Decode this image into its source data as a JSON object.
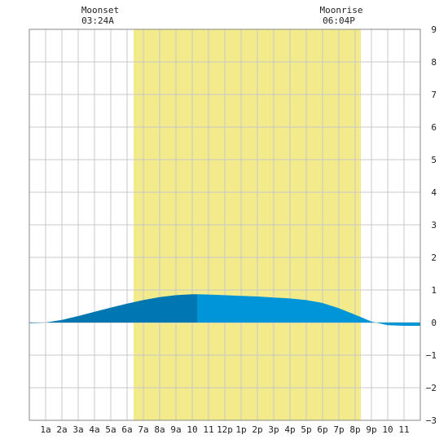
{
  "moon": {
    "moonset_label": "Moonset",
    "moonset_time": "03:24A",
    "moonrise_label": "Moonrise",
    "moonrise_time": "06:04P"
  },
  "colors": {
    "daylight": "#f3ea8c",
    "tide_dark": "#0077b0",
    "tide_light": "#0095d6",
    "grid": "#c8c8c8",
    "frame": "#888888"
  },
  "chart_data": {
    "type": "area",
    "title": "",
    "xlabel": "",
    "ylabel": "",
    "x_range_hours": [
      0,
      24
    ],
    "ylim": [
      -3,
      9
    ],
    "x_tick_labels": [
      "1a",
      "2a",
      "3a",
      "4a",
      "5a",
      "6a",
      "7a",
      "8a",
      "9a",
      "10",
      "11",
      "12p",
      "1p",
      "2p",
      "3p",
      "4p",
      "5p",
      "6p",
      "7p",
      "8p",
      "9p",
      "10",
      "11"
    ],
    "y_tick_labels": [
      "9",
      "8",
      "7",
      "6",
      "5",
      "4",
      "3",
      "2",
      "1",
      "0",
      "−1",
      "−2",
      "−3"
    ],
    "y_ticks": [
      9,
      8,
      7,
      6,
      5,
      4,
      3,
      2,
      1,
      0,
      -1,
      -2,
      -3
    ],
    "daylight_hours": [
      6.4,
      20.35
    ],
    "moonset_hour": 3.4,
    "moonrise_hour": 18.07,
    "high_tide_hour": 10.3,
    "grid": true,
    "series": [
      {
        "x": [
          0,
          1,
          2,
          3,
          4,
          5,
          6,
          7,
          8,
          9,
          10,
          10.3,
          11,
          12,
          13,
          14,
          15,
          16,
          17,
          18,
          19,
          20,
          21,
          22,
          23,
          24
        ],
        "y": [
          -0.02,
          0.0,
          0.08,
          0.2,
          0.33,
          0.46,
          0.58,
          0.69,
          0.78,
          0.84,
          0.87,
          0.87,
          0.86,
          0.84,
          0.82,
          0.8,
          0.77,
          0.74,
          0.69,
          0.6,
          0.44,
          0.24,
          0.03,
          -0.08,
          -0.1,
          -0.1
        ]
      }
    ]
  }
}
